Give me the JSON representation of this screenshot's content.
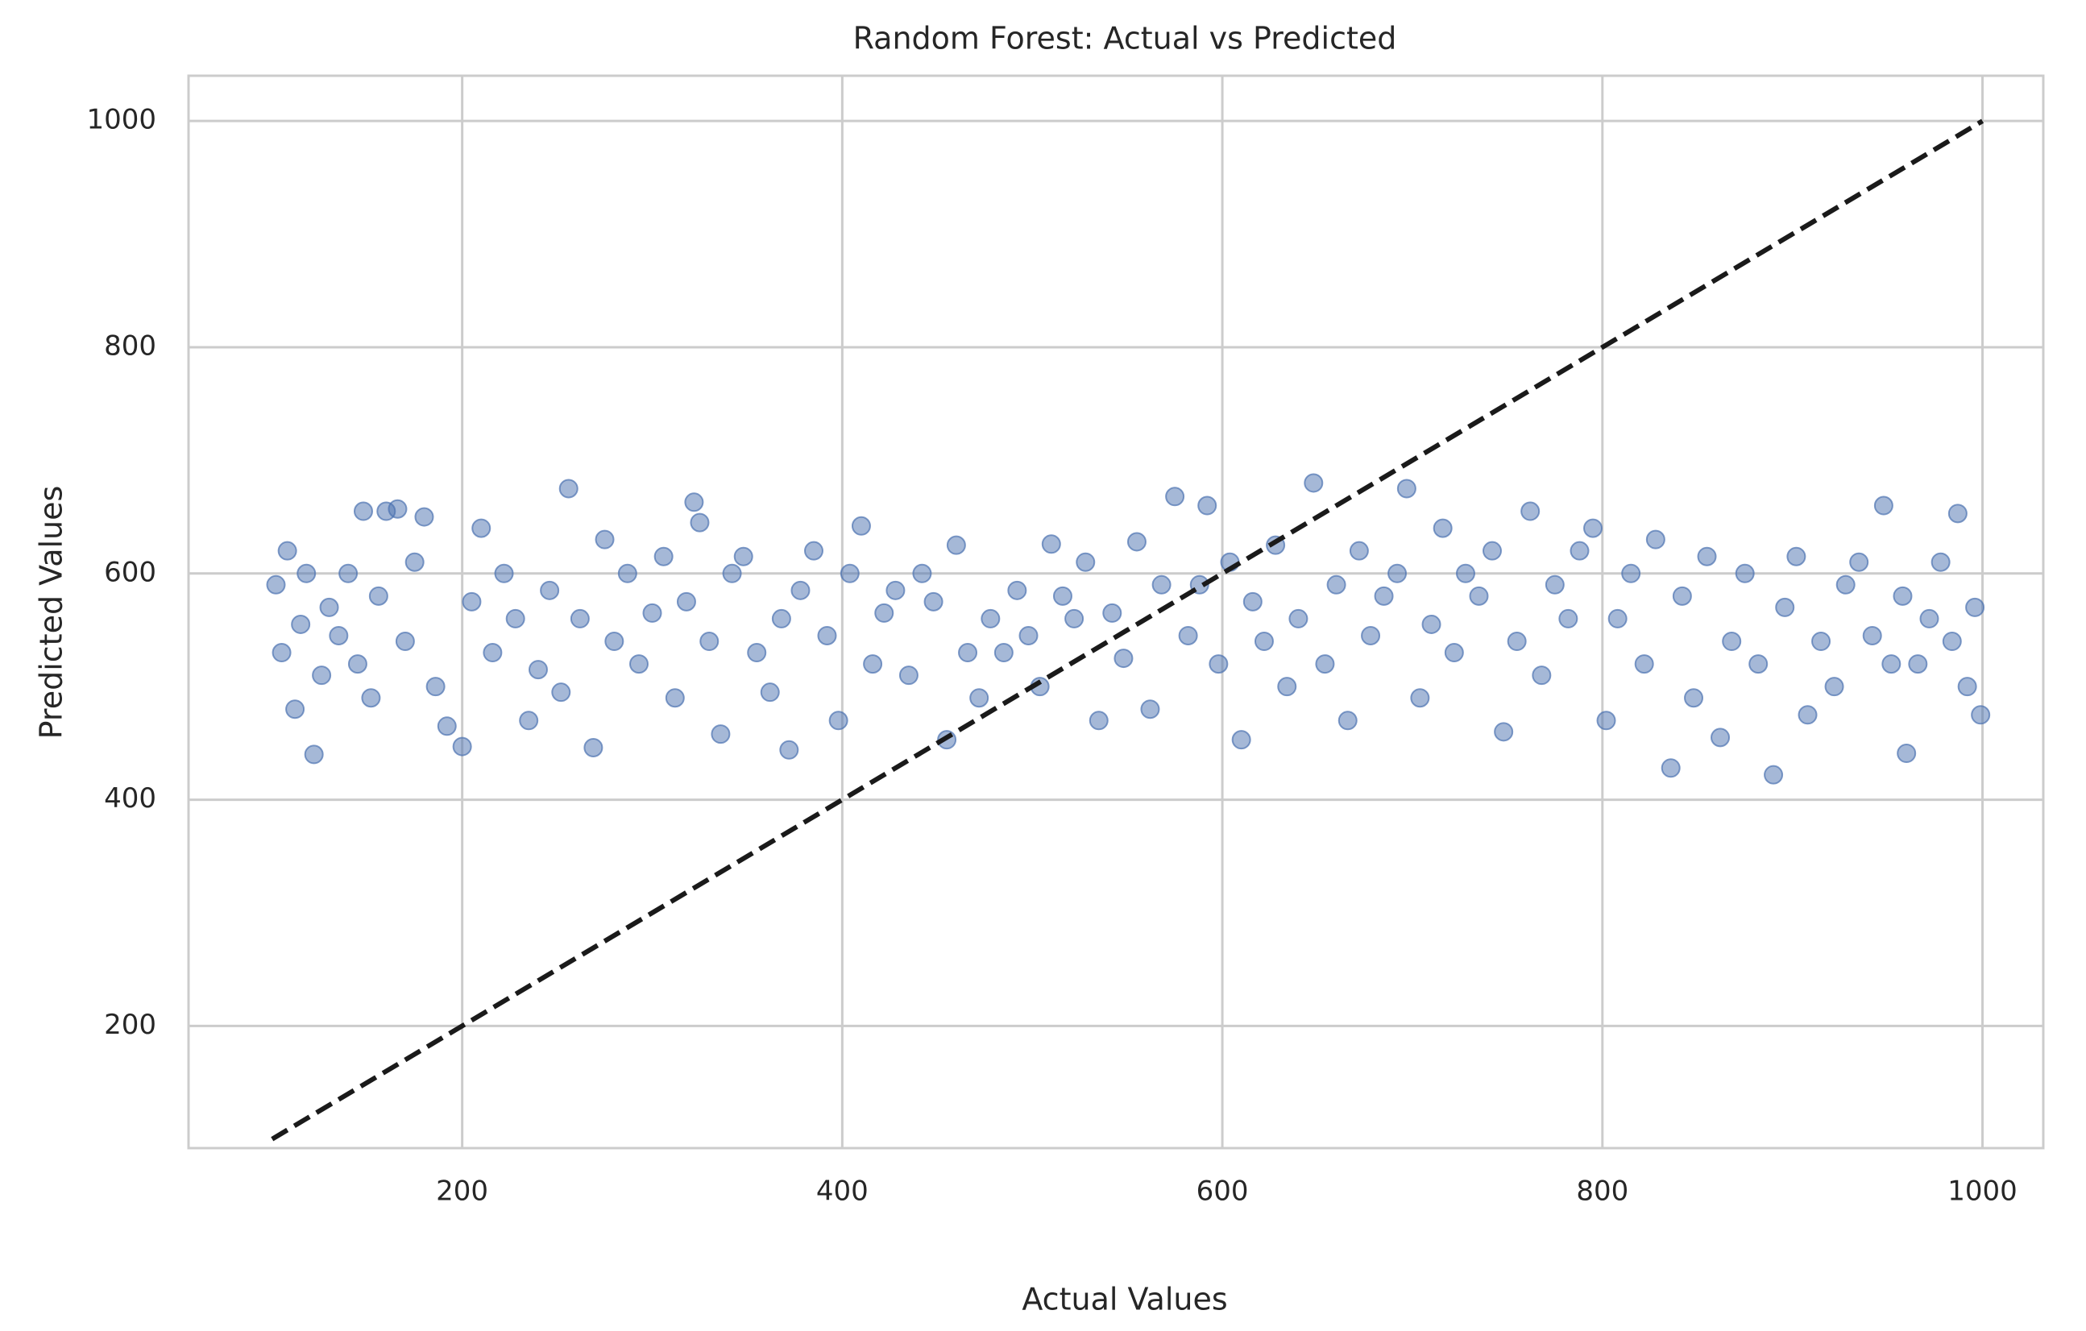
{
  "chart_data": {
    "type": "scatter",
    "title": "Random Forest: Actual vs Predicted",
    "x_label": "Actual Values",
    "y_label": "Predicted Values",
    "xlim": [
      56,
      1032
    ],
    "ylim": [
      92,
      1040
    ],
    "xticks": [
      200,
      400,
      600,
      800,
      1000
    ],
    "yticks": [
      200,
      400,
      600,
      800,
      1000
    ],
    "grid": true,
    "series": [
      {
        "color": "#4c72b0",
        "x": [
          102,
          105,
          108,
          112,
          115,
          118,
          122,
          126,
          130,
          135,
          140,
          145,
          148,
          152,
          156,
          160,
          166,
          170,
          175,
          180,
          186,
          192,
          200,
          205,
          210,
          216,
          222,
          228,
          235,
          240,
          246,
          252,
          256,
          262,
          269,
          275,
          280,
          287,
          293,
          300,
          306,
          312,
          318,
          322,
          325,
          330,
          336,
          342,
          348,
          355,
          362,
          368,
          372,
          378,
          385,
          392,
          398,
          404,
          410,
          416,
          422,
          428,
          435,
          442,
          448,
          455,
          460,
          466,
          472,
          478,
          485,
          492,
          498,
          504,
          510,
          516,
          522,
          528,
          535,
          542,
          548,
          555,
          562,
          568,
          575,
          582,
          588,
          592,
          598,
          604,
          610,
          616,
          622,
          628,
          634,
          640,
          648,
          654,
          660,
          666,
          672,
          678,
          685,
          692,
          697,
          704,
          710,
          716,
          722,
          728,
          735,
          742,
          748,
          755,
          762,
          768,
          775,
          782,
          788,
          795,
          802,
          808,
          815,
          822,
          828,
          836,
          842,
          848,
          855,
          862,
          868,
          875,
          882,
          890,
          896,
          902,
          908,
          915,
          922,
          928,
          935,
          942,
          948,
          952,
          958,
          960,
          966,
          972,
          978,
          984,
          987,
          992,
          996,
          999
        ],
        "values": [
          590,
          530,
          620,
          480,
          555,
          600,
          440,
          510,
          570,
          545,
          600,
          520,
          655,
          490,
          580,
          655,
          657,
          540,
          610,
          650,
          500,
          465,
          447,
          575,
          640,
          530,
          600,
          560,
          470,
          515,
          585,
          495,
          675,
          560,
          446,
          630,
          540,
          600,
          520,
          565,
          615,
          490,
          575,
          663,
          645,
          540,
          458,
          600,
          615,
          530,
          495,
          560,
          444,
          585,
          620,
          545,
          470,
          600,
          642,
          520,
          565,
          585,
          510,
          600,
          575,
          453,
          625,
          530,
          490,
          560,
          530,
          585,
          545,
          500,
          626,
          580,
          560,
          610,
          470,
          565,
          525,
          628,
          480,
          590,
          668,
          545,
          590,
          660,
          520,
          610,
          453,
          575,
          540,
          625,
          500,
          560,
          680,
          520,
          590,
          470,
          620,
          545,
          580,
          600,
          675,
          490,
          555,
          640,
          530,
          600,
          580,
          620,
          460,
          540,
          655,
          510,
          590,
          560,
          620,
          640,
          470,
          560,
          600,
          520,
          630,
          428,
          580,
          490,
          615,
          455,
          540,
          600,
          520,
          422,
          570,
          615,
          475,
          540,
          500,
          590,
          610,
          545,
          660,
          520,
          580,
          441,
          520,
          560,
          610,
          540,
          653,
          500,
          570,
          475
        ]
      }
    ],
    "reference_line": {
      "color": "#1a1a1a",
      "x": [
        100,
        1000
      ],
      "y": [
        100,
        1000
      ]
    }
  }
}
